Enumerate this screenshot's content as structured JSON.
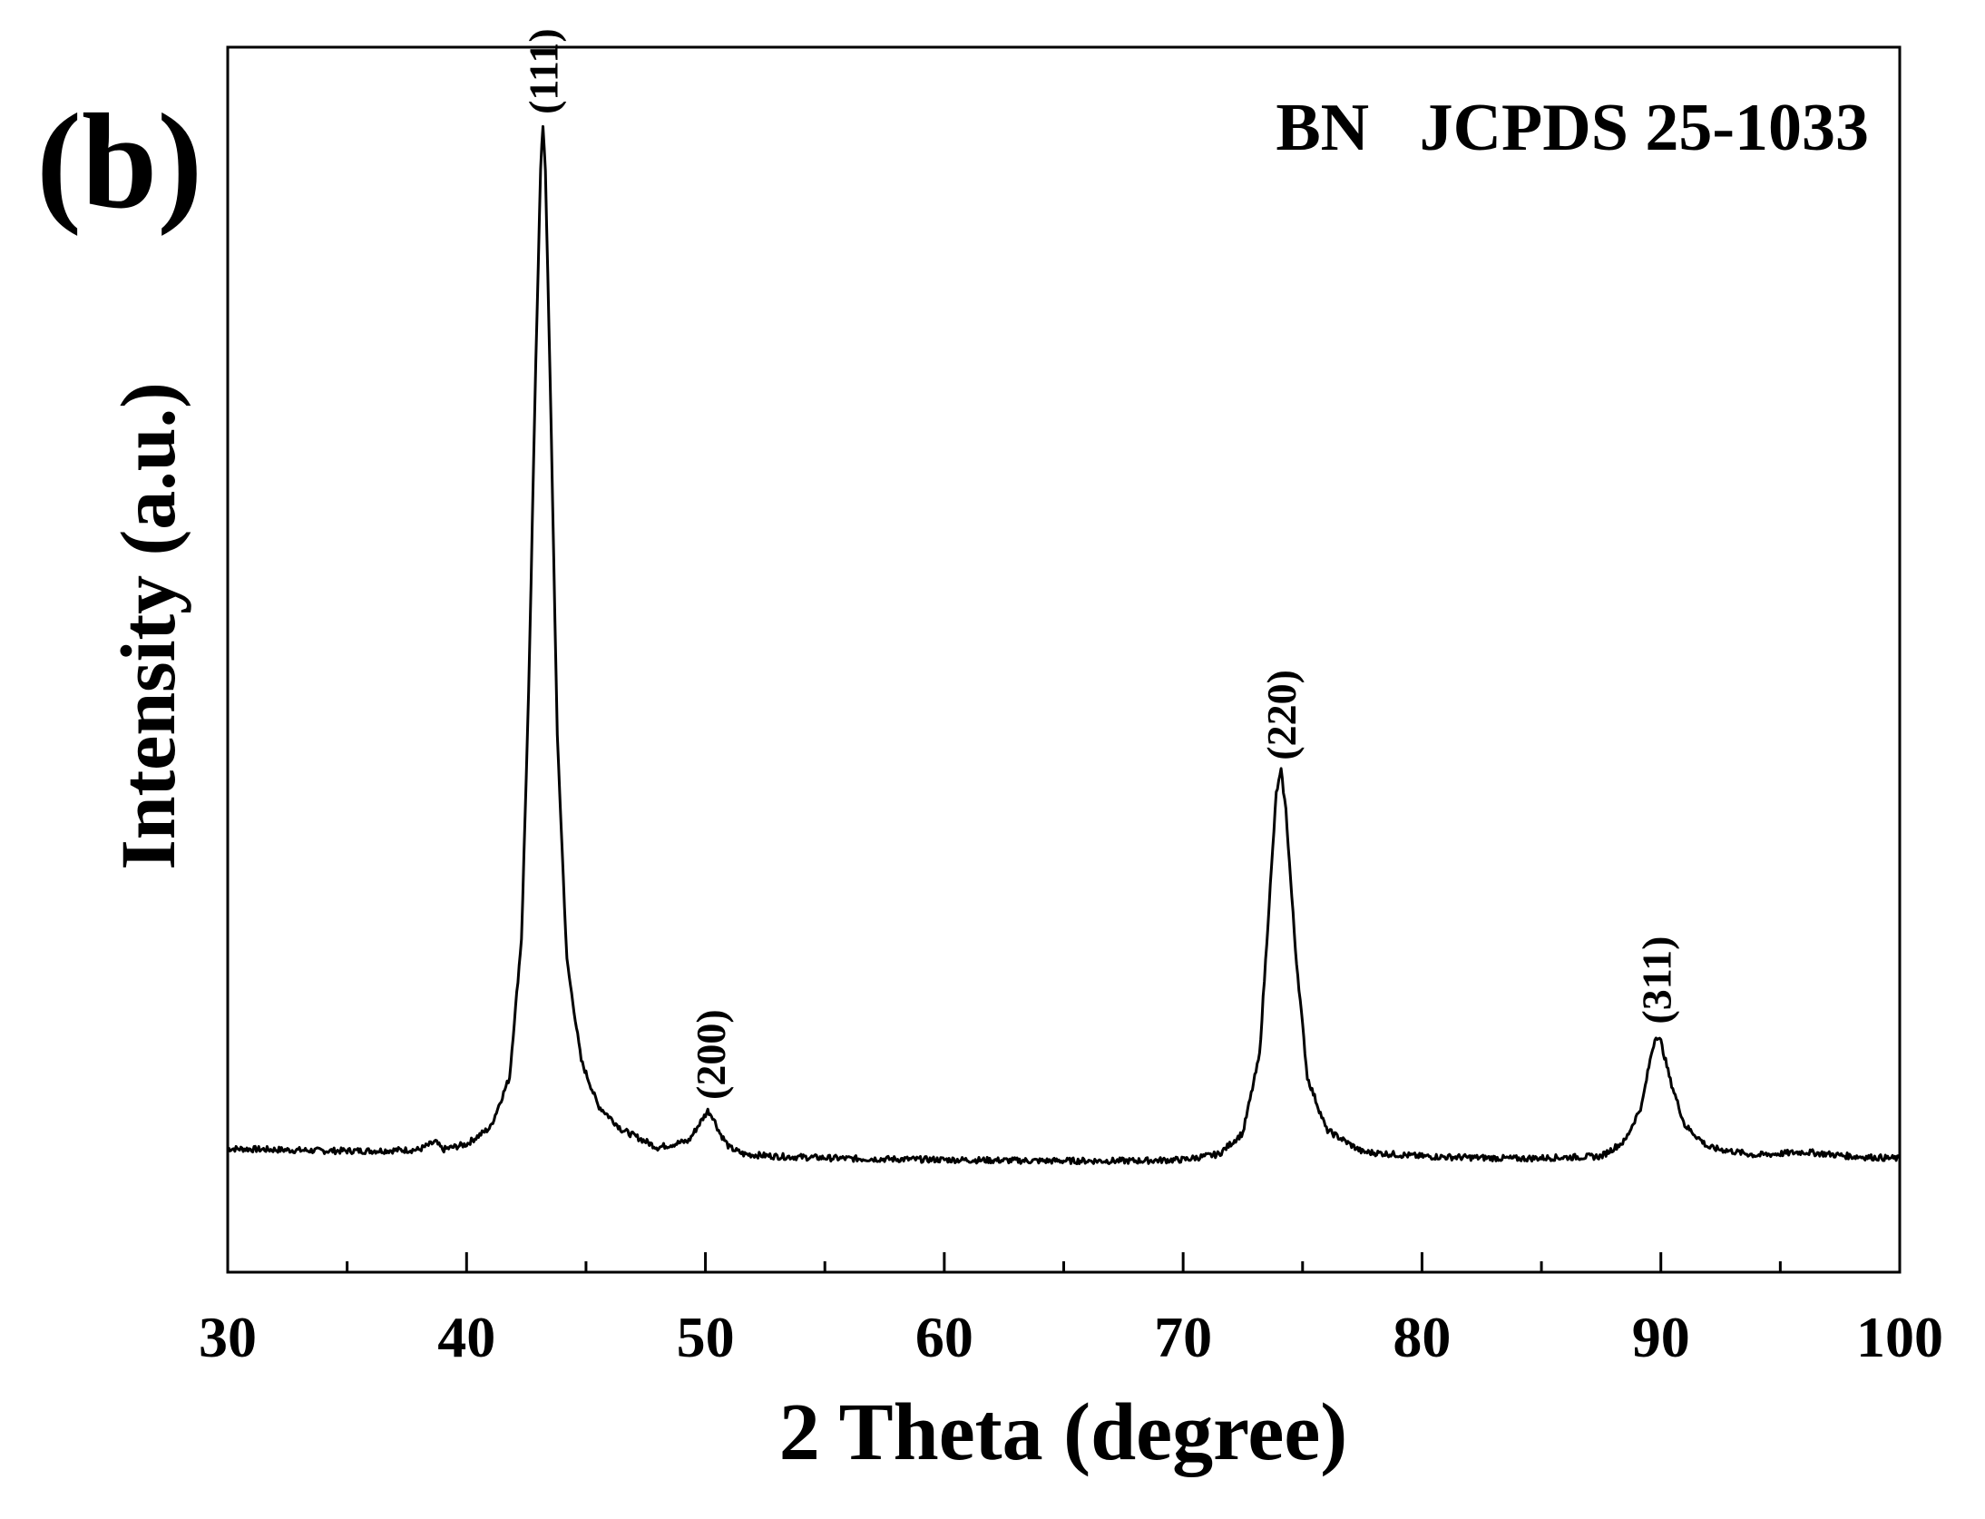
{
  "chart_data": {
    "type": "line",
    "panel_label": "(b)",
    "annotation": "BN   JCPDS 25-1033",
    "xlabel": "2 Theta (degree)",
    "ylabel": "Intensity (a.u.)",
    "xlim": [
      30,
      100
    ],
    "ylim": [
      0,
      1100
    ],
    "x_ticks": [
      30,
      40,
      50,
      60,
      70,
      80,
      90,
      100
    ],
    "x_minor_ticks": [
      35,
      45,
      55,
      65,
      75,
      85,
      95
    ],
    "y_ticks_shown": false,
    "grid": false,
    "legend": "none",
    "series_color": "#000000",
    "series": [
      {
        "x": [
          30,
          32,
          34,
          36,
          38,
          38.7,
          39,
          40,
          41,
          41.8,
          42.3,
          42.6,
          42.9,
          43.1,
          43.2,
          43.3,
          43.5,
          43.8,
          44.2,
          44.8,
          45.5,
          46.5,
          48,
          49.3,
          49.8,
          50.1,
          50.3,
          50.6,
          51,
          51.6,
          53,
          56,
          60,
          64,
          68,
          70,
          71.5,
          72.5,
          73.2,
          73.6,
          73.9,
          74.1,
          74.3,
          74.7,
          75.2,
          76,
          77.5,
          80,
          84,
          87.5,
          88.5,
          89.2,
          89.6,
          89.8,
          90,
          90.4,
          91,
          92,
          94,
          96,
          98,
          100
        ],
        "y": [
          111,
          110,
          109,
          109,
          110,
          117,
          110,
          115,
          130,
          175,
          300,
          520,
          820,
          990,
          1030,
          990,
          800,
          480,
          280,
          190,
          150,
          128,
          112,
          118,
          135,
          145,
          140,
          125,
          112,
          106,
          104,
          102,
          101,
          100,
          100,
          101,
          106,
          125,
          195,
          330,
          430,
          450,
          415,
          290,
          175,
          128,
          108,
          104,
          102,
          104,
          118,
          150,
          196,
          213,
          207,
          172,
          132,
          112,
          105,
          108,
          104,
          102
        ]
      }
    ],
    "peak_labels": [
      {
        "text": "(111)",
        "x": 43.2,
        "y": 1030
      },
      {
        "text": "(200)",
        "x": 50.2,
        "y": 145
      },
      {
        "text": "(220)",
        "x": 74.1,
        "y": 450
      },
      {
        "text": "(311)",
        "x": 89.8,
        "y": 213
      }
    ]
  }
}
